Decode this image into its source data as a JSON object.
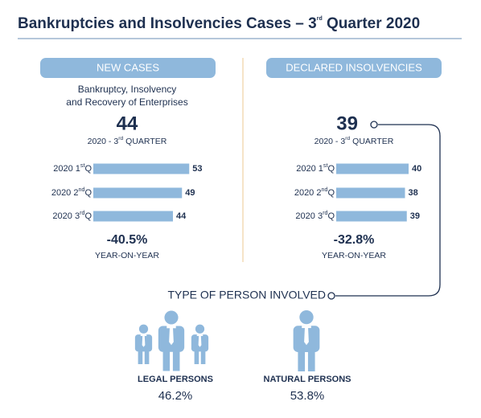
{
  "title": {
    "before": "Bankruptcies and Insolvencies Cases – 3",
    "sup": "rd",
    "after": " Quarter 2020"
  },
  "chart_data": [
    {
      "type": "bar",
      "header": "NEW CASES",
      "subtitle": [
        "Bankruptcy, Insolvency",
        "and Recovery of Enterprises"
      ],
      "headline": 44,
      "headline_label": [
        "2020 - 3",
        "rd",
        " QUARTER"
      ],
      "categories": [
        [
          "2020 1",
          "st",
          "Q"
        ],
        [
          "2020 2",
          "nd",
          "Q"
        ],
        [
          "2020 3",
          "rd",
          "Q"
        ]
      ],
      "values": [
        53,
        49,
        44
      ],
      "color": "#8fb8dc",
      "change": "-40.5%",
      "change_label": "YEAR-ON-YEAR"
    },
    {
      "type": "bar",
      "header": "DECLARED INSOLVENCIES",
      "headline": 39,
      "headline_label": [
        "2020 - 3",
        "rd",
        " QUARTER"
      ],
      "categories": [
        [
          "2020 1",
          "st",
          "Q"
        ],
        [
          "2020 2",
          "nd",
          "Q"
        ],
        [
          "2020 3",
          "rd",
          "Q"
        ]
      ],
      "values": [
        40,
        38,
        39
      ],
      "color": "#8fb8dc",
      "change": "-32.8%",
      "change_label": "YEAR-ON-YEAR"
    }
  ],
  "persons": {
    "title": "TYPE OF PERSON INVOLVED",
    "legal": {
      "label": "LEGAL PERSONS",
      "share": "46.2%"
    },
    "natural": {
      "label": "NATURAL PERSONS",
      "share": "53.8%"
    }
  }
}
